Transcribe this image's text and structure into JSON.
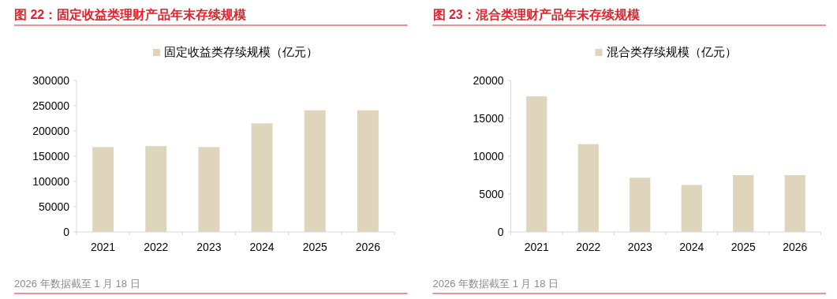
{
  "chart_data": [
    {
      "type": "bar",
      "title": "图 22：固定收益类理财产品年末存续规模",
      "categories": [
        "2021",
        "2022",
        "2023",
        "2024",
        "2025",
        "2026"
      ],
      "series": [
        {
          "name": "固定收益类存续规模（亿元）",
          "color": "#dfd4bc",
          "values": [
            168000,
            170000,
            168000,
            215000,
            241000,
            241000
          ]
        }
      ],
      "ylim": [
        0,
        300000
      ],
      "yticks": [
        0,
        50000,
        100000,
        150000,
        200000,
        250000,
        300000
      ],
      "grid": false,
      "legend": "top",
      "annotations": [
        "2026 年数据截至 1 月 18 日"
      ]
    },
    {
      "type": "bar",
      "title": "图 23：混合类理财产品年末存续规模",
      "categories": [
        "2021",
        "2022",
        "2023",
        "2024",
        "2025",
        "2026"
      ],
      "series": [
        {
          "name": "混合类存续规模（亿元）",
          "color": "#dfd4bc",
          "values": [
            17900,
            11600,
            7150,
            6200,
            7500,
            7500
          ]
        }
      ],
      "ylim": [
        0,
        20000
      ],
      "yticks": [
        0,
        5000,
        10000,
        15000,
        20000
      ],
      "grid": false,
      "legend": "top",
      "annotations": [
        "2026 年数据截至 1 月 18 日"
      ]
    }
  ]
}
